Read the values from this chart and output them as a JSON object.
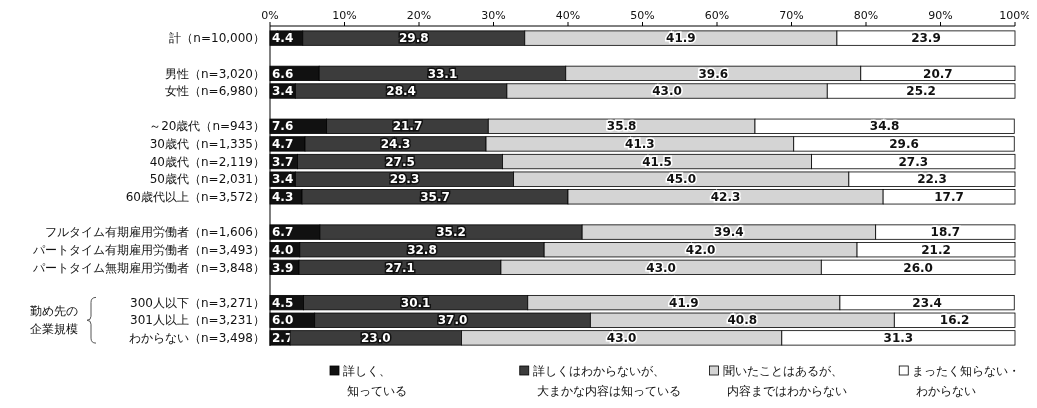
{
  "chart_data": {
    "type": "bar",
    "orientation": "horizontal",
    "stacked": true,
    "categories": [
      "計（n=10,000）",
      null,
      "男性（n=3,020）",
      "女性（n=6,980）",
      null,
      "～20歳代（n=943）",
      "30歳代（n=1,335）",
      "40歳代（n=2,119）",
      "50歳代（n=2,031）",
      "60歳代以上（n=3,572）",
      null,
      "フルタイム有期雇用労働者（n=1,606）",
      "パートタイム有期雇用労働者（n=3,493）",
      "パートタイム無期雇用労働者（n=3,848）",
      null,
      "300人以下（n=3,271）",
      "301人以上（n=3,231）",
      "わからない（n=3,498）"
    ],
    "series": [
      {
        "name": "詳しく、知っている",
        "color": "#111111",
        "values": [
          4.4,
          null,
          6.6,
          3.4,
          null,
          7.6,
          4.7,
          3.7,
          3.4,
          4.3,
          null,
          6.7,
          4.0,
          3.9,
          null,
          4.5,
          6.0,
          2.7
        ],
        "value_labels": [
          "4.4",
          null,
          "6.6",
          "3.4",
          null,
          "7.6",
          "4.7",
          "3.7",
          "3.4",
          "4.3",
          null,
          "6.7",
          "4.0",
          "3.9",
          null,
          "4.5",
          "6.0",
          "2.7"
        ]
      },
      {
        "name": "詳しくはわからないが、大まかな内容は知っている",
        "color": "#3c3c3c",
        "values": [
          29.8,
          null,
          33.1,
          28.4,
          null,
          21.7,
          24.3,
          27.5,
          29.3,
          35.7,
          null,
          35.2,
          32.8,
          27.1,
          null,
          30.1,
          37.0,
          23.0
        ],
        "value_labels": [
          "29.8",
          null,
          "33.1",
          "28.4",
          null,
          "21.7",
          "24.3",
          "27.5",
          "29.3",
          "35.7",
          null,
          "35.2",
          "32.8",
          "27.1",
          null,
          "30.1",
          "37.0",
          "23.0"
        ]
      },
      {
        "name": "聞いたことはあるが、内容まではわからない",
        "color": "#d4d4d4",
        "values": [
          41.9,
          null,
          39.6,
          43.0,
          null,
          35.8,
          41.3,
          41.5,
          45.0,
          42.3,
          null,
          39.4,
          42.0,
          43.0,
          null,
          41.9,
          40.8,
          43.0
        ],
        "value_labels": [
          "41.9",
          null,
          "39.6",
          "43.0",
          null,
          "35.8",
          "41.3",
          "41.5",
          "45.0",
          "42.3",
          null,
          "39.4",
          "42.0",
          "43.0",
          null,
          "41.9",
          "40.8",
          "43.0"
        ]
      },
      {
        "name": "まったく知らない・わからない",
        "color": "#ffffff",
        "values": [
          23.9,
          null,
          20.7,
          25.2,
          null,
          34.8,
          29.6,
          27.3,
          22.3,
          17.7,
          null,
          18.7,
          21.2,
          26.0,
          null,
          23.4,
          16.2,
          31.3
        ],
        "value_labels": [
          "23.9",
          null,
          "20.7",
          "25.2",
          null,
          "34.8",
          "29.6",
          "27.3",
          "22.3",
          "17.7",
          null,
          "18.7",
          "21.2",
          "26.0",
          null,
          "23.4",
          "16.2",
          "31.3"
        ]
      }
    ],
    "xlim": [
      0,
      100
    ],
    "xticks": [
      {
        "value": 0,
        "label": "0%"
      },
      {
        "value": 10,
        "label": "10%"
      },
      {
        "value": 20,
        "label": "20%"
      },
      {
        "value": 30,
        "label": "30%"
      },
      {
        "value": 40,
        "label": "40%"
      },
      {
        "value": 50,
        "label": "50%"
      },
      {
        "value": 60,
        "label": "60%"
      },
      {
        "value": 70,
        "label": "70%"
      },
      {
        "value": 80,
        "label": "80%"
      },
      {
        "value": 90,
        "label": "90%"
      },
      {
        "value": 100,
        "label": "100%"
      }
    ],
    "legend": "bottom",
    "annotations": [
      {
        "text": "勤め先の企業規模"
      }
    ]
  }
}
